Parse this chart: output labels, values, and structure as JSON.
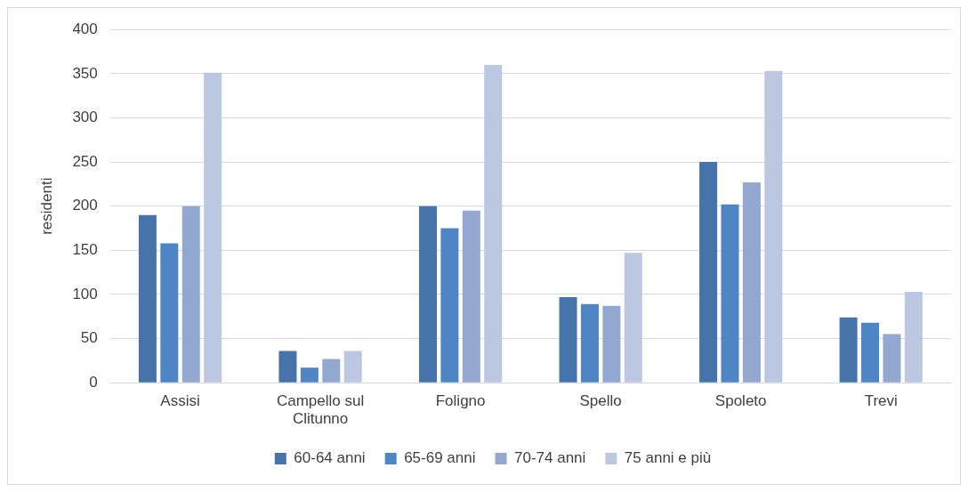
{
  "chart_data": {
    "type": "bar",
    "ylabel": "residenti",
    "categories": [
      "Assisi",
      "Campello sul Clitunno",
      "Foligno",
      "Spello",
      "Spoleto",
      "Trevi"
    ],
    "series": [
      {
        "name": "60-64 anni",
        "color": "#4674aa",
        "values": [
          190,
          36,
          200,
          97,
          250,
          74
        ]
      },
      {
        "name": "65-69 anni",
        "color": "#4e85c5",
        "values": [
          158,
          17,
          175,
          89,
          202,
          68
        ]
      },
      {
        "name": "70-74 anni",
        "color": "#93a8d0",
        "values": [
          200,
          27,
          195,
          87,
          227,
          55
        ]
      },
      {
        "name": "75 anni e più",
        "color": "#bcc8e2",
        "values": [
          351,
          36,
          360,
          147,
          353,
          103
        ]
      }
    ],
    "ylim": [
      0,
      400
    ],
    "yticks": [
      0,
      50,
      100,
      150,
      200,
      250,
      300,
      350,
      400
    ],
    "grid": "y",
    "legend": "bottom"
  }
}
